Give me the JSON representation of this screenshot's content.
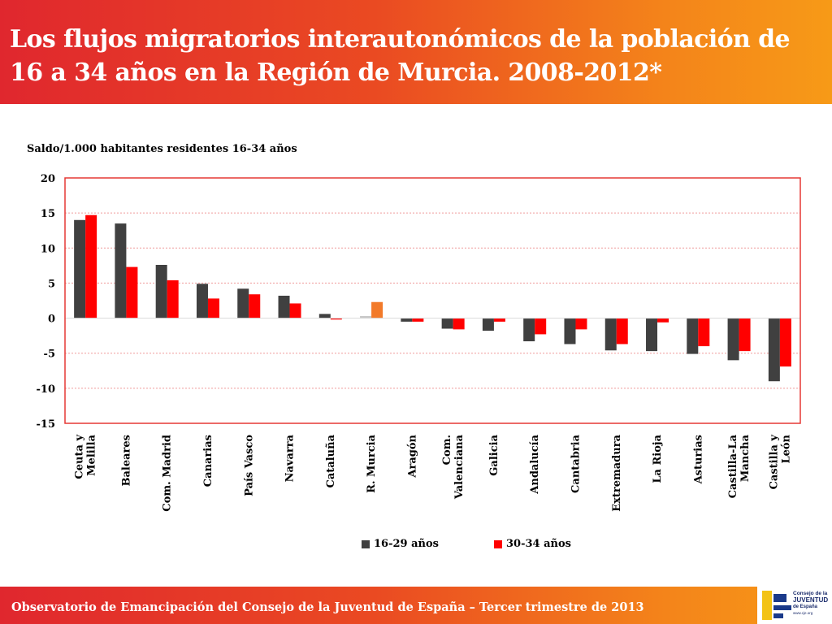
{
  "header": {
    "title": "Los flujos migratorios interautonómicos de la población de 16 a 34 años en la Región de Murcia. 2008-2012*"
  },
  "chart_data": {
    "type": "bar",
    "title": "Los flujos migratorios interautonómicos de la población de 16 a 34 años en la Región de Murcia. 2008-2012*",
    "ylabel": "Saldo/1.000 habitantes residentes 16-34 años",
    "xlabel": "",
    "ylim": [
      -15,
      20
    ],
    "yticks": [
      20,
      15,
      10,
      5,
      0,
      -5,
      -10,
      -15
    ],
    "grid": true,
    "legend_position": "bottom",
    "categories": [
      [
        "Ceuta y",
        "Melilla"
      ],
      [
        "Baleares"
      ],
      [
        "Com. Madrid"
      ],
      [
        "Canarias"
      ],
      [
        "País Vasco"
      ],
      [
        "Navarra"
      ],
      [
        "Cataluña"
      ],
      [
        "R. Murcia"
      ],
      [
        "Aragón"
      ],
      [
        "Com.",
        "Valenciana"
      ],
      [
        "Galicia"
      ],
      [
        "Andalucía"
      ],
      [
        "Cantabria"
      ],
      [
        "Extremadura"
      ],
      [
        "La Rioja"
      ],
      [
        "Asturias"
      ],
      [
        "Castilla-La",
        "Mancha"
      ],
      [
        "Castilla y",
        "León"
      ]
    ],
    "series": [
      {
        "name": "16-29 años",
        "color": "#404040",
        "values": [
          14.0,
          13.5,
          7.6,
          4.9,
          4.2,
          3.2,
          0.6,
          0.3,
          -0.5,
          -1.5,
          -1.8,
          -3.3,
          -3.7,
          -4.6,
          -4.7,
          -5.1,
          -6.0,
          -9.0
        ]
      },
      {
        "name": "30-34 años",
        "color": "#ff0000",
        "values": [
          14.7,
          7.3,
          5.4,
          2.8,
          3.4,
          2.1,
          -0.2,
          2.3,
          -0.5,
          -1.6,
          -0.5,
          -2.3,
          -1.6,
          -3.7,
          -0.6,
          -4.0,
          -4.7,
          -6.9
        ]
      }
    ],
    "highlight": {
      "category": "R. Murcia",
      "colors": [
        "#c8c8c8",
        "#f27a2a"
      ]
    }
  },
  "footer": {
    "text": "Observatorio de Emancipación del Consejo de la Juventud de España – Tercer trimestre de 2013",
    "logo": {
      "line1": "Consejo de la",
      "line2": "JUVENTUD",
      "line3": "de España",
      "line4": "www.cje.org"
    }
  }
}
